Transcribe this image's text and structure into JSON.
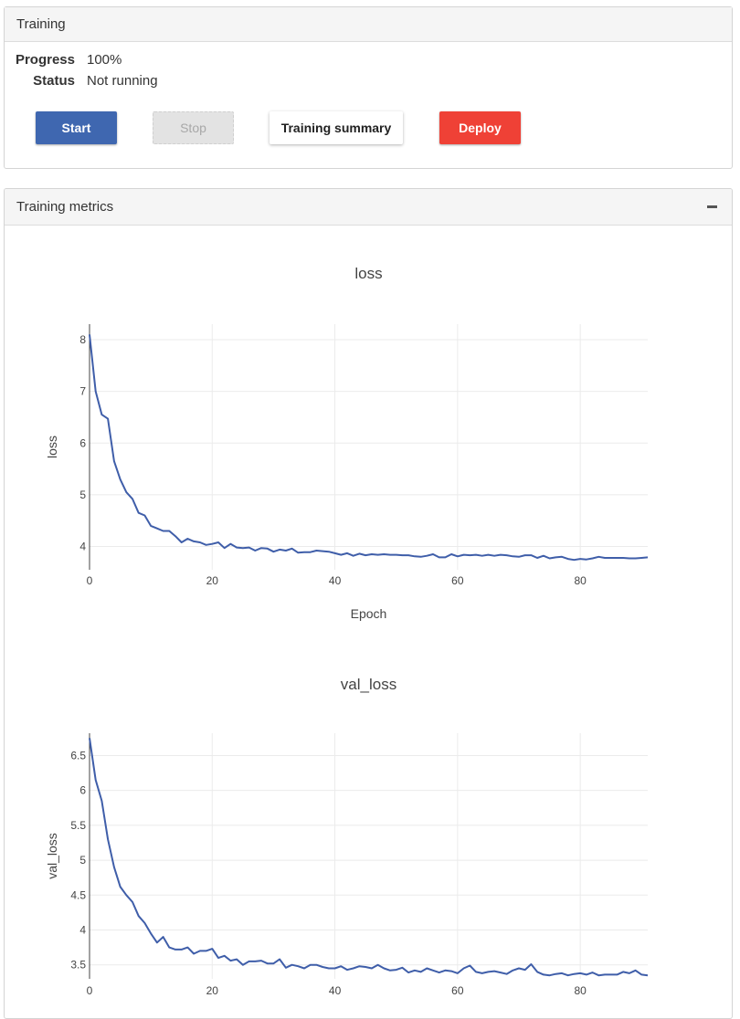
{
  "training_panel": {
    "title": "Training",
    "progress_label": "Progress",
    "progress_value": "100%",
    "status_label": "Status",
    "status_value": "Not running",
    "buttons": {
      "start": "Start",
      "stop": "Stop",
      "summary": "Training summary",
      "deploy": "Deploy"
    }
  },
  "metrics_panel": {
    "title": "Training metrics",
    "collapse_icon": "minus-icon"
  },
  "colors": {
    "line": "#3f5ea9",
    "start_button": "#3f67b0",
    "deploy_button": "#ef4136",
    "grid": "#ebebeb"
  },
  "chart_data": [
    {
      "type": "line",
      "title": "loss",
      "xlabel": "Epoch",
      "ylabel": "loss",
      "xlim": [
        0,
        91
      ],
      "ylim": [
        3.55,
        8.3
      ],
      "xticks": [
        0,
        20,
        40,
        60,
        80
      ],
      "yticks": [
        4,
        5,
        6,
        7,
        8
      ],
      "ytick_labels": [
        "4",
        "5",
        "6",
        "7",
        "8"
      ],
      "grid": true,
      "x": [
        0,
        1,
        2,
        3,
        4,
        5,
        6,
        7,
        8,
        9,
        10,
        11,
        12,
        13,
        14,
        15,
        16,
        17,
        18,
        19,
        20,
        21,
        22,
        23,
        24,
        25,
        26,
        27,
        28,
        29,
        30,
        31,
        32,
        33,
        34,
        35,
        36,
        37,
        38,
        39,
        40,
        41,
        42,
        43,
        44,
        45,
        46,
        47,
        48,
        49,
        50,
        51,
        52,
        53,
        54,
        55,
        56,
        57,
        58,
        59,
        60,
        61,
        62,
        63,
        64,
        65,
        66,
        67,
        68,
        69,
        70,
        71,
        72,
        73,
        74,
        75,
        76,
        77,
        78,
        79,
        80,
        81,
        82,
        83,
        84,
        85,
        86,
        87,
        88,
        89,
        90,
        91
      ],
      "values": [
        8.1,
        7.0,
        6.55,
        6.47,
        5.65,
        5.3,
        5.05,
        4.92,
        4.65,
        4.6,
        4.4,
        4.35,
        4.3,
        4.3,
        4.2,
        4.08,
        4.15,
        4.1,
        4.08,
        4.03,
        4.05,
        4.08,
        3.97,
        4.05,
        3.98,
        3.97,
        3.98,
        3.92,
        3.97,
        3.96,
        3.9,
        3.94,
        3.92,
        3.96,
        3.88,
        3.89,
        3.89,
        3.92,
        3.91,
        3.9,
        3.87,
        3.84,
        3.87,
        3.82,
        3.86,
        3.83,
        3.85,
        3.84,
        3.85,
        3.84,
        3.84,
        3.83,
        3.83,
        3.81,
        3.8,
        3.82,
        3.85,
        3.79,
        3.79,
        3.85,
        3.81,
        3.84,
        3.83,
        3.84,
        3.82,
        3.84,
        3.82,
        3.84,
        3.83,
        3.81,
        3.8,
        3.83,
        3.83,
        3.78,
        3.82,
        3.77,
        3.79,
        3.8,
        3.76,
        3.74,
        3.76,
        3.75,
        3.77,
        3.8,
        3.78,
        3.78,
        3.78,
        3.78,
        3.77,
        3.77,
        3.78,
        3.79
      ]
    },
    {
      "type": "line",
      "title": "val_loss",
      "xlabel": "",
      "ylabel": "val_loss",
      "xlim": [
        0,
        91
      ],
      "ylim": [
        3.3,
        6.82
      ],
      "xticks": [
        0,
        20,
        40,
        60,
        80
      ],
      "yticks": [
        3.5,
        4,
        4.5,
        5,
        5.5,
        6,
        6.5
      ],
      "ytick_labels": [
        "3.5",
        "4",
        "4.5",
        "5",
        "5.5",
        "6",
        "6.5"
      ],
      "grid": true,
      "x": [
        0,
        1,
        2,
        3,
        4,
        5,
        6,
        7,
        8,
        9,
        10,
        11,
        12,
        13,
        14,
        15,
        16,
        17,
        18,
        19,
        20,
        21,
        22,
        23,
        24,
        25,
        26,
        27,
        28,
        29,
        30,
        31,
        32,
        33,
        34,
        35,
        36,
        37,
        38,
        39,
        40,
        41,
        42,
        43,
        44,
        45,
        46,
        47,
        48,
        49,
        50,
        51,
        52,
        53,
        54,
        55,
        56,
        57,
        58,
        59,
        60,
        61,
        62,
        63,
        64,
        65,
        66,
        67,
        68,
        69,
        70,
        71,
        72,
        73,
        74,
        75,
        76,
        77,
        78,
        79,
        80,
        81,
        82,
        83,
        84,
        85,
        86,
        87,
        88,
        89,
        90,
        91
      ],
      "values": [
        6.75,
        6.15,
        5.85,
        5.3,
        4.9,
        4.62,
        4.5,
        4.4,
        4.2,
        4.1,
        3.95,
        3.82,
        3.9,
        3.75,
        3.72,
        3.72,
        3.75,
        3.66,
        3.7,
        3.7,
        3.73,
        3.6,
        3.63,
        3.56,
        3.58,
        3.5,
        3.55,
        3.55,
        3.56,
        3.52,
        3.52,
        3.58,
        3.46,
        3.5,
        3.48,
        3.45,
        3.5,
        3.5,
        3.47,
        3.45,
        3.45,
        3.48,
        3.43,
        3.45,
        3.48,
        3.47,
        3.45,
        3.5,
        3.45,
        3.42,
        3.43,
        3.46,
        3.39,
        3.42,
        3.4,
        3.45,
        3.42,
        3.39,
        3.42,
        3.41,
        3.38,
        3.45,
        3.49,
        3.4,
        3.38,
        3.4,
        3.41,
        3.39,
        3.37,
        3.42,
        3.45,
        3.43,
        3.51,
        3.4,
        3.36,
        3.35,
        3.37,
        3.38,
        3.35,
        3.37,
        3.38,
        3.36,
        3.39,
        3.35,
        3.36,
        3.36,
        3.36,
        3.4,
        3.38,
        3.42,
        3.36,
        3.35
      ]
    }
  ]
}
